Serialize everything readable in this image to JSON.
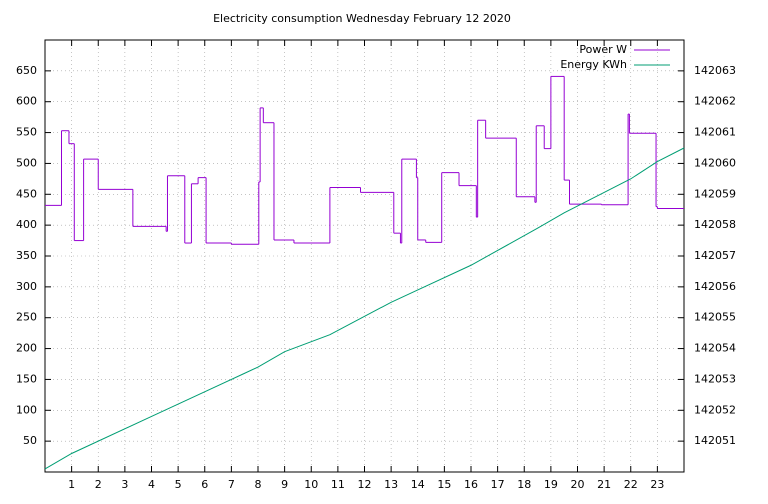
{
  "chart_data": {
    "type": "line",
    "title": "Electricity consumption Wednesday February 12 2020",
    "xlim": [
      0,
      24
    ],
    "xticks": [
      1,
      2,
      3,
      4,
      5,
      6,
      7,
      8,
      9,
      10,
      11,
      12,
      13,
      14,
      15,
      16,
      17,
      18,
      19,
      20,
      21,
      22,
      23
    ],
    "ylim": [
      0,
      700
    ],
    "yticks": [
      50,
      100,
      150,
      200,
      250,
      300,
      350,
      400,
      450,
      500,
      550,
      600,
      650
    ],
    "y2lim": [
      142050,
      142064
    ],
    "y2ticks": [
      142051,
      142052,
      142053,
      142054,
      142055,
      142056,
      142057,
      142058,
      142059,
      142060,
      142061,
      142062,
      142063
    ],
    "grid": true,
    "legend": "top-right",
    "series": [
      {
        "name": "Power W",
        "color": "#9400d3",
        "step": true,
        "x": [
          0,
          0.62,
          0.9,
          1.1,
          1.45,
          2.0,
          3.3,
          4.55,
          4.6,
          5.25,
          5.5,
          5.75,
          6.05,
          7.0,
          8.03,
          8.08,
          8.2,
          8.6,
          9.35,
          10.7,
          11.85,
          13.1,
          13.35,
          13.4,
          13.95,
          14.0,
          14.3,
          14.9,
          15.55,
          16.2,
          16.25,
          16.55,
          17.7,
          18.4,
          18.45,
          18.75,
          19.0,
          19.5,
          19.7,
          20.9,
          21.9,
          21.95,
          22.95,
          23.0
        ],
        "values": [
          432,
          553,
          532,
          375,
          507,
          458,
          398,
          390,
          480,
          371,
          467,
          477,
          371,
          369,
          470,
          590,
          566,
          376,
          371,
          461,
          453,
          387,
          371,
          507,
          477,
          376,
          372,
          485,
          464,
          413,
          570,
          541,
          446,
          437,
          561,
          524,
          641,
          473,
          434,
          433,
          580,
          549,
          430,
          427
        ]
      },
      {
        "name": "Energy KWh",
        "color": "#009e73",
        "axis": "y2",
        "x": [
          0,
          1,
          4,
          7.5,
          8,
          9,
          10.7,
          13,
          14,
          16,
          18.5,
          19.5,
          21,
          22,
          23,
          24
        ],
        "values": [
          142050.1,
          142050.6,
          142051.8,
          142053.2,
          142053.4,
          142053.9,
          142054.45,
          142055.5,
          142055.9,
          142056.7,
          142057.9,
          142058.4,
          142059.06,
          142059.5,
          142060.06,
          142060.5
        ]
      }
    ]
  }
}
